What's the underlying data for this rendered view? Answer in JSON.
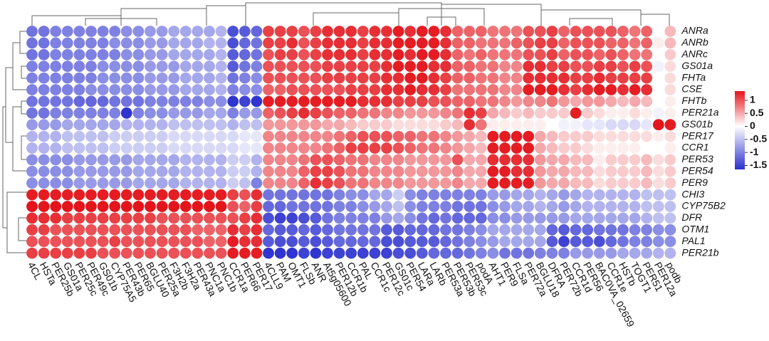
{
  "chart_data": {
    "type": "heatmap",
    "rows": [
      "ANRa",
      "ANRb",
      "ANRc",
      "GS01a",
      "FHTa",
      "CSE",
      "FHTb",
      "PER21a",
      "GS01b",
      "PER17",
      "CCR1",
      "PER53",
      "PER54",
      "PER9",
      "CHI3",
      "CYP75B2",
      "DFR",
      "OTM1",
      "PAL1",
      "PER21b"
    ],
    "columns": [
      "4CL",
      "HSTa",
      "PER25b",
      "GS01a",
      "PER25c",
      "PER49c",
      "GS01b",
      "CYP75A5",
      "PER43b",
      "PER65",
      "BGLU40",
      "PER25a",
      "F3H2b",
      "F3H2a",
      "PER43a",
      "PNC1a",
      "PNC1b",
      "CCR1a",
      "PER66",
      "PER17",
      "4CLL9",
      "PAM",
      "OMT1",
      "FLSb",
      "ANR",
      "At5g05600",
      "PER12b",
      "CCR1b",
      "PAL",
      "CCR1c",
      "PER12c",
      "GS01c",
      "PER54",
      "LARa",
      "LARb",
      "PER53a",
      "PER53b",
      "PER53c",
      "podA",
      "AHT1",
      "PER9",
      "FLSa",
      "PER72a",
      "BGLU18",
      "DFRA",
      "PER72b",
      "CCR1d",
      "PER56",
      "BAC0VA_02659",
      "CCR1e",
      "HSTb",
      "TOGT1",
      "PER51",
      "PER12a",
      "podb"
    ],
    "values": [
      [
        -1.1,
        -1.1,
        -1.0,
        -1.0,
        -1.0,
        -1.0,
        -1.0,
        -1.0,
        -0.9,
        -0.9,
        -0.8,
        -0.8,
        -0.7,
        -0.7,
        -0.7,
        -0.7,
        -0.6,
        -1.4,
        -1.3,
        -1.2,
        1.1,
        1.1,
        1.1,
        1.0,
        1.1,
        1.2,
        1.2,
        1.2,
        1.1,
        1.2,
        1.2,
        1.3,
        1.2,
        1.3,
        1.3,
        1.2,
        0.9,
        0.9,
        0.9,
        0.8,
        0.8,
        0.8,
        1.0,
        1.0,
        1.1,
        0.9,
        1.0,
        1.0,
        1.0,
        1.0,
        0.9,
        0.8,
        0.9,
        0.0,
        0.4
      ],
      [
        -1.1,
        -1.1,
        -1.0,
        -1.0,
        -1.0,
        -1.0,
        -1.0,
        -0.9,
        -0.9,
        -0.9,
        -0.8,
        -0.8,
        -0.7,
        -0.7,
        -0.7,
        -0.6,
        -0.6,
        -1.4,
        -1.2,
        -1.1,
        1.1,
        1.1,
        1.2,
        1.0,
        1.1,
        1.2,
        1.2,
        1.2,
        1.1,
        1.2,
        1.2,
        1.3,
        1.3,
        1.3,
        1.3,
        1.2,
        0.9,
        0.9,
        0.8,
        0.8,
        0.8,
        0.9,
        1.0,
        1.1,
        1.1,
        0.9,
        1.0,
        1.0,
        1.0,
        0.9,
        0.9,
        0.8,
        0.9,
        0.1,
        0.4
      ],
      [
        -1.1,
        -1.1,
        -1.0,
        -1.0,
        -1.0,
        -1.0,
        -1.0,
        -1.0,
        -0.9,
        -0.9,
        -0.8,
        -0.8,
        -0.7,
        -0.7,
        -0.7,
        -0.7,
        -0.6,
        -1.3,
        -1.2,
        -1.1,
        1.0,
        1.1,
        1.1,
        1.0,
        1.1,
        1.2,
        1.2,
        1.2,
        1.1,
        1.2,
        1.2,
        1.3,
        1.2,
        1.3,
        1.3,
        1.2,
        0.9,
        0.8,
        0.9,
        0.8,
        0.8,
        0.8,
        1.0,
        1.0,
        1.1,
        0.9,
        1.0,
        1.0,
        0.9,
        1.0,
        0.9,
        0.8,
        0.8,
        0.0,
        0.3
      ],
      [
        -1.0,
        -1.0,
        -1.0,
        -1.0,
        -1.0,
        -1.0,
        -0.9,
        -0.9,
        -0.9,
        -0.9,
        -0.8,
        -0.8,
        -0.8,
        -0.7,
        -0.7,
        -0.7,
        -0.6,
        -1.3,
        -1.1,
        -1.0,
        1.0,
        1.0,
        1.0,
        1.0,
        1.0,
        1.1,
        1.1,
        1.1,
        1.1,
        1.1,
        1.2,
        1.3,
        1.3,
        1.3,
        1.2,
        1.2,
        0.9,
        0.9,
        0.8,
        0.8,
        0.7,
        0.7,
        1.2,
        1.2,
        1.1,
        1.1,
        1.0,
        1.0,
        1.1,
        1.1,
        1.0,
        1.1,
        1.0,
        -0.1,
        0.2
      ],
      [
        -1.0,
        -1.0,
        -1.0,
        -1.0,
        -1.0,
        -1.0,
        -0.9,
        -0.9,
        -0.9,
        -0.9,
        -0.8,
        -0.8,
        -0.8,
        -0.7,
        -0.7,
        -0.7,
        -0.6,
        -1.1,
        -1.0,
        -0.9,
        1.0,
        1.0,
        1.0,
        1.0,
        1.0,
        1.1,
        1.1,
        1.1,
        1.1,
        1.1,
        1.2,
        1.2,
        1.3,
        1.3,
        1.2,
        1.1,
        0.9,
        0.9,
        0.8,
        0.8,
        0.7,
        0.7,
        1.2,
        1.2,
        1.2,
        1.2,
        1.1,
        1.1,
        1.2,
        1.1,
        1.1,
        1.1,
        1.1,
        0.0,
        0.2
      ],
      [
        -1.0,
        -1.0,
        -1.0,
        -1.0,
        -1.0,
        -0.9,
        -0.9,
        -0.9,
        -0.9,
        -0.9,
        -0.8,
        -0.8,
        -0.8,
        -0.7,
        -0.7,
        -0.7,
        -0.6,
        -1.0,
        -0.9,
        -0.9,
        0.9,
        0.9,
        1.0,
        1.0,
        1.0,
        1.0,
        1.0,
        1.1,
        1.1,
        1.1,
        1.2,
        1.2,
        1.3,
        1.2,
        1.2,
        1.1,
        0.8,
        0.8,
        0.8,
        0.8,
        0.7,
        0.7,
        1.3,
        1.3,
        1.3,
        1.2,
        1.1,
        1.2,
        1.3,
        1.3,
        1.2,
        1.3,
        1.2,
        0.0,
        0.2
      ],
      [
        -1.1,
        -1.1,
        -1.1,
        -1.1,
        -1.2,
        -1.2,
        -1.2,
        -1.1,
        -1.1,
        -1.1,
        -1.0,
        -1.0,
        -1.0,
        -1.0,
        -1.0,
        -0.9,
        -0.9,
        -1.6,
        -1.5,
        -1.6,
        1.3,
        1.3,
        1.3,
        1.3,
        1.3,
        1.3,
        1.3,
        1.3,
        1.2,
        1.2,
        1.2,
        1.1,
        1.1,
        1.1,
        1.0,
        1.0,
        0.9,
        0.9,
        0.8,
        0.8,
        0.7,
        0.6,
        0.7,
        0.7,
        0.8,
        0.6,
        0.5,
        0.6,
        0.6,
        0.5,
        0.4,
        0.5,
        0.4,
        0.0,
        0.1
      ],
      [
        -1.1,
        -1.1,
        -1.0,
        -1.0,
        -1.0,
        -1.0,
        -1.0,
        -1.0,
        -1.6,
        -1.0,
        -0.9,
        -0.9,
        -0.8,
        -0.8,
        -0.8,
        -0.7,
        -0.7,
        -1.0,
        -0.8,
        -0.8,
        0.9,
        1.0,
        1.1,
        1.2,
        1.1,
        1.0,
        0.9,
        0.9,
        0.8,
        0.8,
        0.7,
        0.7,
        0.6,
        0.6,
        0.6,
        0.7,
        0.8,
        1.2,
        1.1,
        0.5,
        0.4,
        0.3,
        0.4,
        0.3,
        0.3,
        0.3,
        1.3,
        0.3,
        0.2,
        0.1,
        0.1,
        0.2,
        0.1,
        -0.1,
        0.1
      ],
      [
        -0.8,
        -0.8,
        -0.8,
        -0.7,
        -0.7,
        -0.7,
        -0.7,
        -0.7,
        -0.6,
        -0.6,
        -0.6,
        -0.6,
        -0.5,
        -0.5,
        -0.5,
        -0.5,
        -0.5,
        -0.6,
        -0.5,
        -0.5,
        0.6,
        0.6,
        0.6,
        0.6,
        0.6,
        0.5,
        0.5,
        0.4,
        0.3,
        0.3,
        0.3,
        0.2,
        0.2,
        0.2,
        0.2,
        0.3,
        0.4,
        1.2,
        0.8,
        0.1,
        0.1,
        0.1,
        0.1,
        0.1,
        0.0,
        -0.1,
        -0.1,
        -0.2,
        -0.2,
        -0.3,
        -0.3,
        -0.3,
        -0.2,
        1.4,
        1.3
      ],
      [
        -0.6,
        -0.6,
        -0.6,
        -0.5,
        -0.5,
        -0.5,
        -0.5,
        -0.4,
        -0.4,
        -0.4,
        -0.4,
        -0.4,
        -0.3,
        -0.3,
        -0.3,
        -0.3,
        -0.3,
        -0.3,
        -0.2,
        -0.2,
        0.7,
        0.7,
        0.7,
        0.7,
        0.7,
        0.7,
        0.8,
        0.9,
        1.0,
        1.0,
        1.0,
        0.9,
        0.9,
        0.8,
        0.8,
        0.7,
        0.6,
        0.5,
        0.4,
        1.3,
        1.3,
        1.3,
        1.3,
        0.5,
        0.4,
        0.3,
        0.3,
        0.3,
        0.2,
        0.2,
        0.2,
        0.2,
        0.2,
        0.1,
        0.2
      ],
      [
        -0.6,
        -0.6,
        -0.6,
        -0.5,
        -0.5,
        -0.5,
        -0.5,
        -0.4,
        -0.4,
        -0.4,
        -0.4,
        -0.4,
        -0.3,
        -0.3,
        -0.3,
        -0.3,
        -0.3,
        -0.3,
        -0.2,
        -0.2,
        0.7,
        0.7,
        0.7,
        0.7,
        0.7,
        0.8,
        0.9,
        1.1,
        1.1,
        1.1,
        1.1,
        1.0,
        0.9,
        0.8,
        0.8,
        0.7,
        0.6,
        0.5,
        0.4,
        1.3,
        1.3,
        1.3,
        1.3,
        0.5,
        0.4,
        0.3,
        0.3,
        0.2,
        0.1,
        0.1,
        0.1,
        0.1,
        0.0,
        0.0,
        0.1
      ],
      [
        -0.9,
        -0.9,
        -0.9,
        -0.9,
        -0.8,
        -0.8,
        -0.8,
        -0.8,
        -0.8,
        -0.7,
        -0.7,
        -0.7,
        -0.7,
        -0.6,
        -0.6,
        -0.6,
        -0.6,
        -0.4,
        -0.4,
        -0.6,
        0.7,
        0.7,
        0.7,
        0.8,
        1.0,
        1.0,
        0.9,
        0.8,
        0.8,
        0.7,
        0.7,
        0.7,
        0.6,
        0.6,
        0.6,
        0.6,
        1.0,
        0.5,
        0.5,
        1.2,
        1.2,
        1.2,
        1.2,
        0.6,
        0.5,
        0.5,
        0.4,
        0.4,
        0.1,
        0.3,
        0.3,
        0.3,
        0.4,
        0.2,
        0.3
      ],
      [
        -0.9,
        -0.9,
        -0.9,
        -0.9,
        -0.8,
        -0.8,
        -0.8,
        -0.8,
        -0.8,
        -0.7,
        -0.7,
        -0.7,
        -0.7,
        -0.6,
        -0.6,
        -0.6,
        -0.6,
        -0.4,
        -0.4,
        -0.6,
        0.7,
        0.7,
        0.7,
        0.9,
        1.1,
        1.1,
        1.0,
        0.8,
        0.8,
        0.7,
        0.7,
        0.7,
        0.6,
        0.6,
        0.6,
        0.6,
        0.7,
        0.5,
        0.5,
        1.3,
        1.3,
        1.2,
        1.2,
        0.6,
        0.5,
        0.5,
        0.4,
        0.4,
        0.2,
        0.3,
        0.3,
        0.3,
        0.4,
        0.2,
        0.3
      ],
      [
        -0.9,
        -0.9,
        -0.9,
        -0.9,
        -0.8,
        -0.8,
        -0.8,
        -0.8,
        -0.8,
        -0.7,
        -0.7,
        -0.7,
        -0.7,
        -0.6,
        -0.6,
        -0.6,
        -0.6,
        -0.4,
        -0.5,
        -1.0,
        0.7,
        0.7,
        0.7,
        0.9,
        1.2,
        1.1,
        1.0,
        0.8,
        0.8,
        0.7,
        0.7,
        0.7,
        0.6,
        0.6,
        0.6,
        0.6,
        0.7,
        0.5,
        0.5,
        1.3,
        1.3,
        1.3,
        1.3,
        0.6,
        0.5,
        0.5,
        0.4,
        0.4,
        0.2,
        0.3,
        0.3,
        0.3,
        0.4,
        0.2,
        0.3
      ],
      [
        1.3,
        1.3,
        1.3,
        1.3,
        1.3,
        1.3,
        1.3,
        1.3,
        1.3,
        1.3,
        1.3,
        1.3,
        1.3,
        1.3,
        1.3,
        1.3,
        1.3,
        1.1,
        1.0,
        1.2,
        -1.1,
        -1.1,
        -1.1,
        -1.1,
        -1.1,
        -1.1,
        -1.0,
        -0.9,
        -0.9,
        -0.7,
        -0.7,
        -0.4,
        -0.9,
        -1.0,
        -1.0,
        -1.0,
        -1.0,
        -1.0,
        -1.0,
        -0.8,
        -0.8,
        -0.7,
        -0.7,
        -0.6,
        -0.7,
        -0.8,
        -0.7,
        -0.6,
        -0.6,
        -0.6,
        -0.6,
        -0.6,
        -0.5,
        -0.5,
        -0.5
      ],
      [
        1.4,
        1.4,
        1.4,
        1.4,
        1.4,
        1.4,
        1.4,
        1.4,
        1.4,
        1.4,
        1.4,
        1.4,
        1.4,
        1.4,
        1.4,
        1.4,
        1.4,
        1.0,
        0.9,
        1.1,
        -1.2,
        -1.2,
        -1.1,
        -1.1,
        -1.1,
        -1.1,
        -1.0,
        -1.0,
        -0.9,
        -0.8,
        -0.7,
        -0.5,
        -0.9,
        -1.0,
        -1.0,
        -1.0,
        -1.1,
        -1.1,
        -1.1,
        -0.9,
        -0.8,
        -0.7,
        -0.7,
        -0.6,
        -0.7,
        -0.8,
        -0.7,
        -0.6,
        -0.6,
        -0.6,
        -0.6,
        -0.6,
        -0.5,
        -0.5,
        -0.5
      ],
      [
        1.2,
        1.2,
        1.2,
        1.1,
        1.1,
        1.1,
        1.1,
        1.1,
        1.1,
        1.1,
        1.1,
        1.0,
        1.0,
        1.0,
        1.0,
        1.0,
        1.0,
        1.0,
        1.1,
        1.2,
        -1.4,
        -1.5,
        -1.5,
        -1.4,
        -1.3,
        -1.1,
        -1.0,
        -1.0,
        -1.0,
        -1.0,
        -0.8,
        -0.7,
        -0.9,
        -1.1,
        -1.2,
        -1.1,
        -1.2,
        -1.2,
        -1.2,
        -0.9,
        -0.9,
        -0.8,
        -0.8,
        -0.8,
        -0.8,
        -0.8,
        -0.7,
        -0.7,
        -0.7,
        -0.7,
        -0.7,
        -0.7,
        -0.6,
        -0.5,
        -0.5
      ],
      [
        1.1,
        1.1,
        1.0,
        1.0,
        1.0,
        1.0,
        1.0,
        1.0,
        1.0,
        1.0,
        1.0,
        1.0,
        1.0,
        1.0,
        0.9,
        0.9,
        0.9,
        1.2,
        1.1,
        1.2,
        -1.2,
        -1.3,
        -1.3,
        -1.2,
        -1.3,
        -1.2,
        -1.1,
        -1.1,
        -1.1,
        -1.1,
        -1.3,
        -1.3,
        -1.2,
        -1.2,
        -1.2,
        -1.1,
        -1.1,
        -1.0,
        -0.9,
        -0.7,
        -0.7,
        -0.7,
        -0.7,
        -0.7,
        -1.2,
        -1.3,
        -1.2,
        -1.2,
        -1.1,
        -1.1,
        -1.1,
        -1.0,
        -1.0,
        -0.9,
        -0.9
      ],
      [
        1.0,
        1.0,
        1.0,
        1.0,
        1.0,
        1.0,
        1.0,
        1.1,
        1.0,
        1.0,
        1.0,
        1.0,
        1.0,
        1.0,
        1.0,
        0.9,
        0.9,
        1.3,
        1.2,
        1.2,
        -1.3,
        -1.4,
        -1.4,
        -1.3,
        -1.4,
        -1.3,
        -1.2,
        -1.2,
        -1.2,
        -1.2,
        -1.4,
        -1.4,
        -1.3,
        -1.3,
        -1.3,
        -1.2,
        -1.1,
        -1.0,
        -0.9,
        -0.8,
        -0.7,
        -0.7,
        -0.7,
        -0.7,
        -1.3,
        -1.5,
        -1.3,
        -1.3,
        -1.4,
        -1.2,
        -1.1,
        -1.0,
        -1.0,
        -0.9,
        -0.9
      ],
      [
        1.1,
        1.1,
        1.1,
        1.1,
        1.1,
        1.1,
        1.0,
        1.0,
        1.0,
        1.0,
        1.0,
        1.0,
        1.0,
        1.0,
        1.0,
        1.0,
        1.0,
        1.3,
        1.3,
        1.3,
        -1.6,
        -1.6,
        -1.6,
        -1.5,
        -1.6,
        -1.5,
        -1.5,
        -1.5,
        -1.5,
        -1.5,
        -1.5,
        -1.4,
        -1.4,
        -1.3,
        -1.2,
        -1.2,
        -1.2,
        -1.1,
        -1.0,
        -0.9,
        -1.1,
        -1.1,
        -1.1,
        -1.0,
        -1.0,
        -1.0,
        -0.8,
        -0.8,
        -0.8,
        -0.8,
        -0.7,
        -0.7,
        -0.7,
        -0.6,
        -0.6
      ]
    ],
    "clim": [
      -1.65,
      1.35
    ],
    "colorbar_ticks": [
      1,
      0.5,
      0,
      -0.5,
      -1,
      -1.5
    ],
    "colors": {
      "low": "#2a2fcf",
      "mid": "#ffffff",
      "high": "#e4141b"
    }
  }
}
